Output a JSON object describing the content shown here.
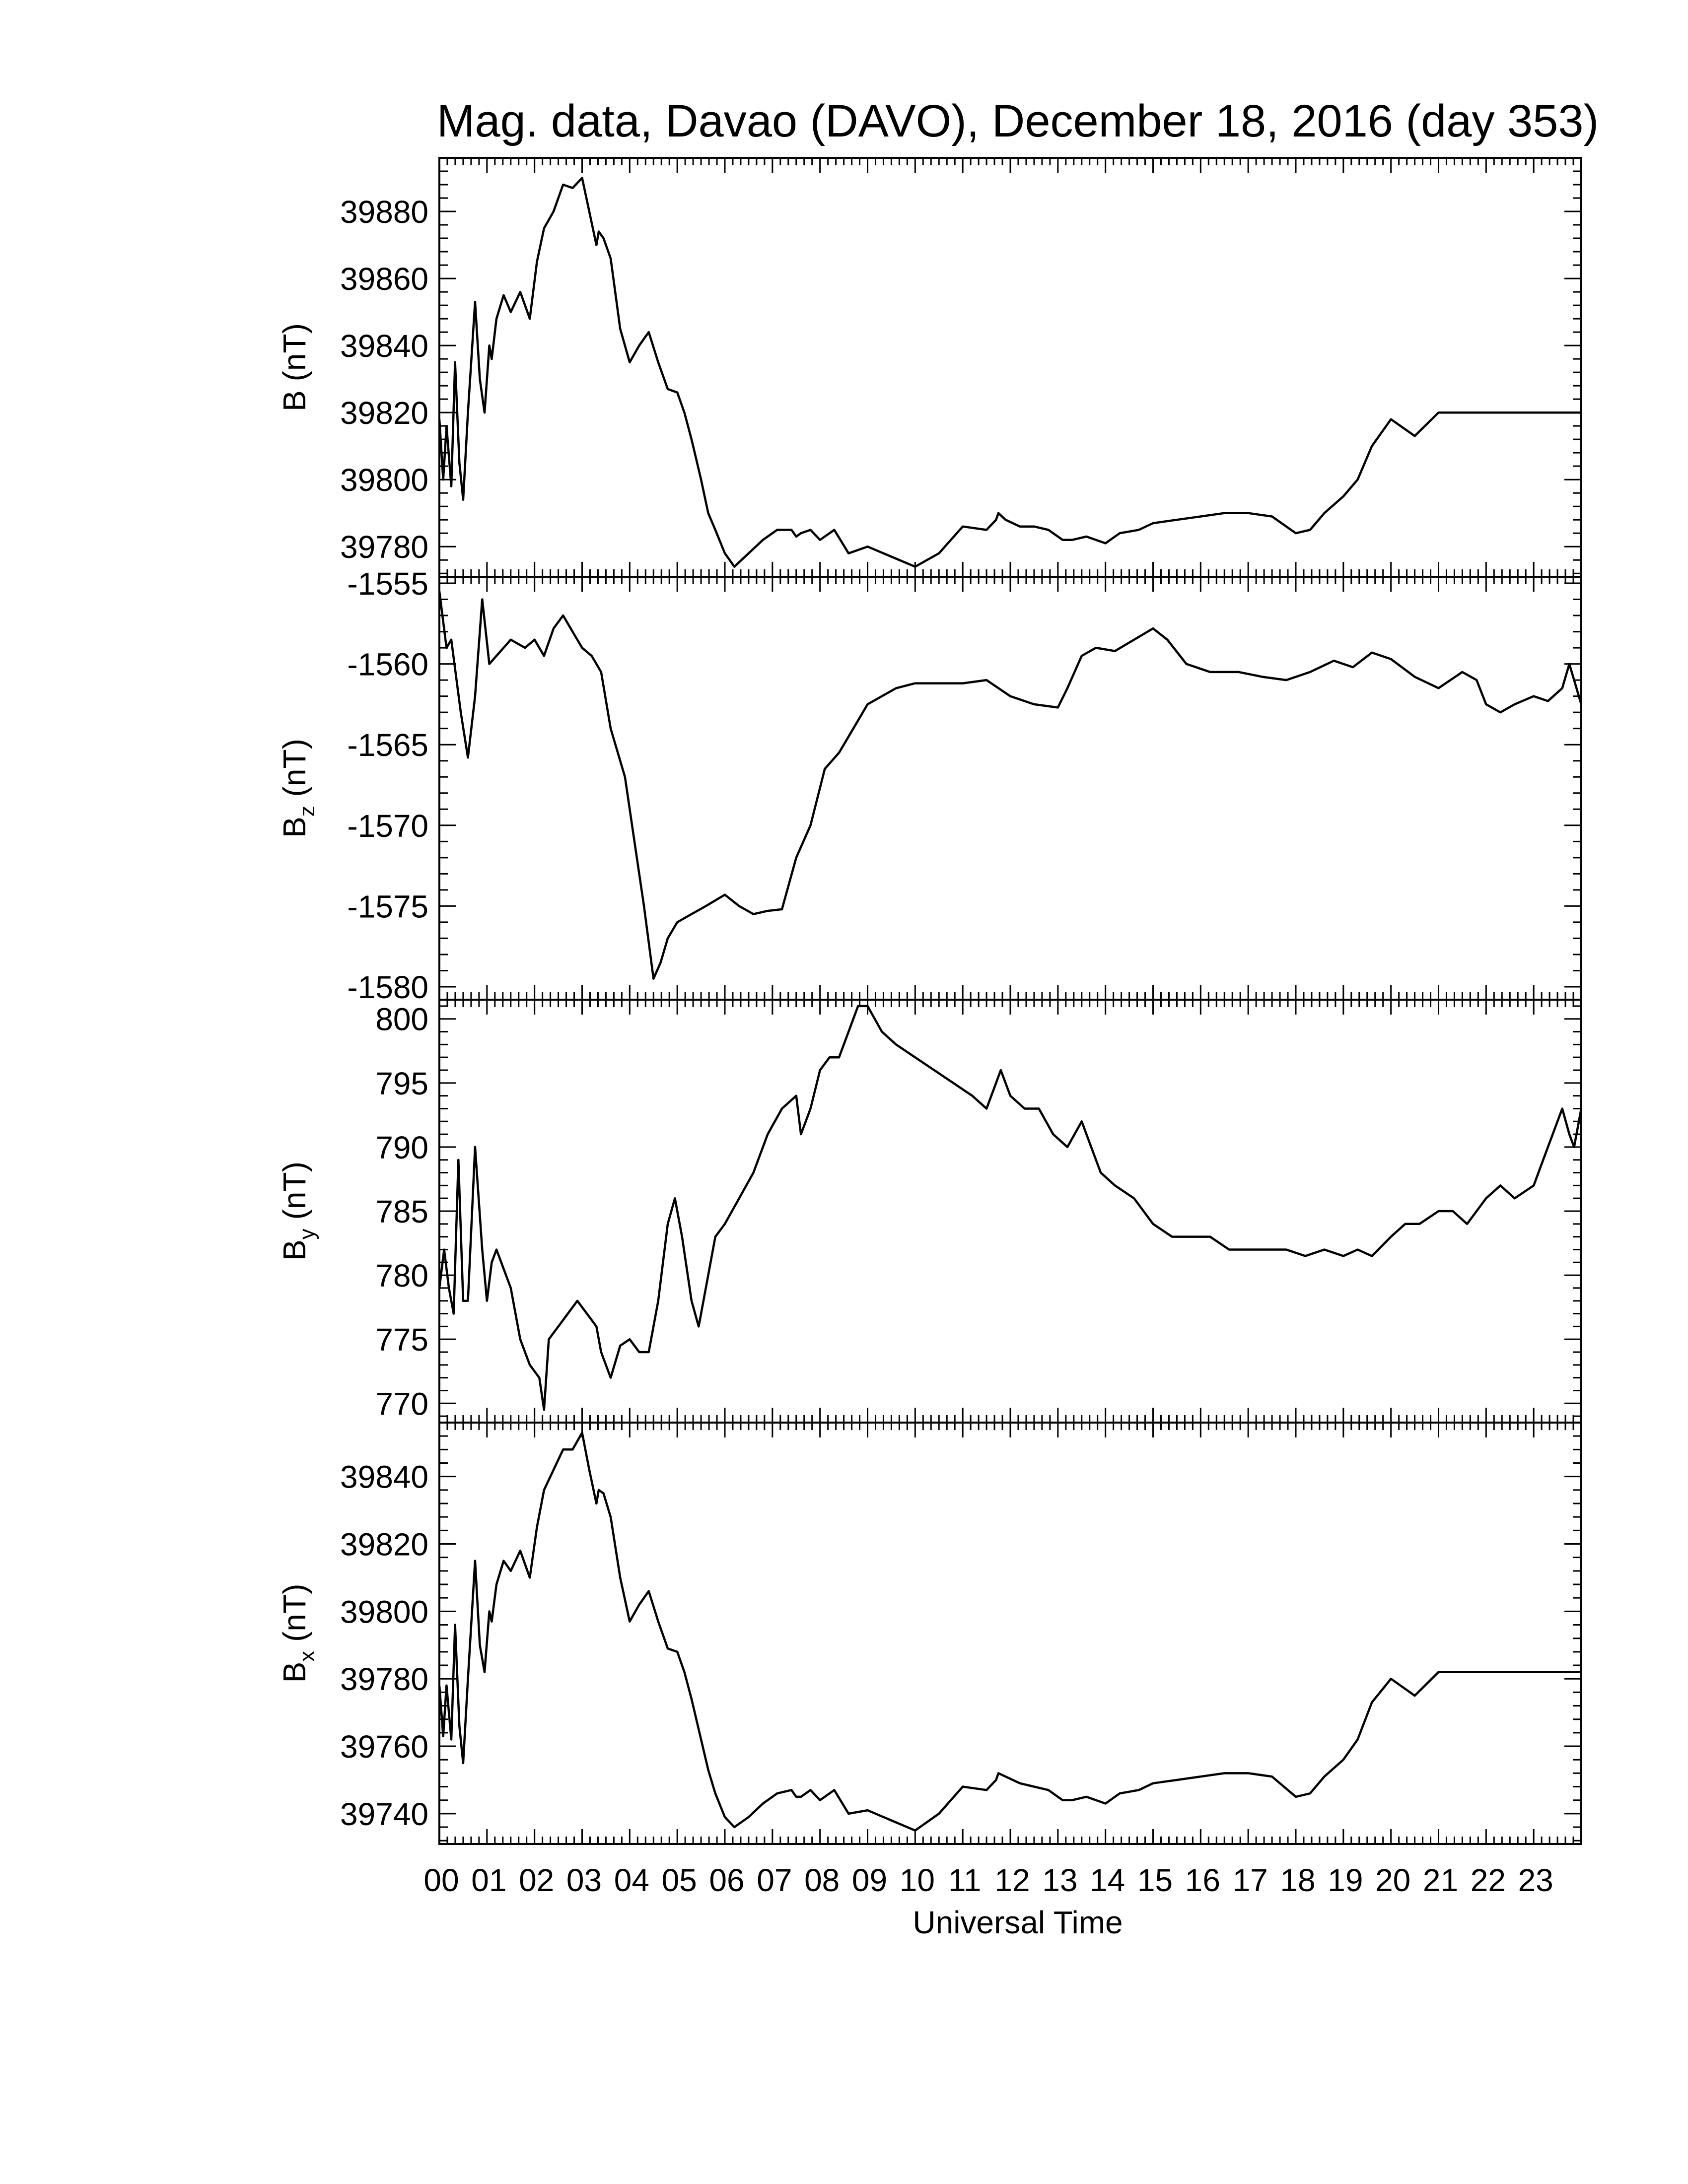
{
  "chart_data": {
    "type": "line",
    "title": "Mag. data, Davao (DAVO), December 18, 2016 (day 353)",
    "xlabel": "Universal Time",
    "x_unit": "hours UT",
    "xlim": [
      0,
      24
    ],
    "x_tick_labels": [
      "00",
      "01",
      "02",
      "03",
      "04",
      "05",
      "06",
      "07",
      "08",
      "09",
      "10",
      "11",
      "12",
      "13",
      "14",
      "15",
      "16",
      "17",
      "18",
      "19",
      "20",
      "21",
      "22",
      "23"
    ],
    "panels": [
      {
        "ylabel_main": "B",
        "ylabel_sub": "",
        "ylabel_unit": "(nT)",
        "ylim": [
          39771,
          39896
        ],
        "yticks": [
          39780,
          39800,
          39820,
          39840,
          39860,
          39880
        ],
        "series": [
          {
            "x": [
              0.0,
              0.08,
              0.15,
              0.25,
              0.33,
              0.42,
              0.5,
              0.6,
              0.75,
              0.85,
              0.95,
              1.05,
              1.1,
              1.2,
              1.35,
              1.5,
              1.7,
              1.9,
              2.05,
              2.2,
              2.4,
              2.6,
              2.8,
              3.0,
              3.15,
              3.3,
              3.35,
              3.45,
              3.6,
              3.8,
              4.0,
              4.2,
              4.4,
              4.6,
              4.8,
              5.0,
              5.15,
              5.3,
              5.5,
              5.65,
              5.8,
              6.0,
              6.2,
              6.5,
              6.8,
              7.1,
              7.4,
              7.5,
              7.6,
              7.8,
              8.0,
              8.3,
              8.6,
              9.0,
              9.5,
              10.0,
              10.5,
              11.0,
              11.5,
              11.7,
              11.75,
              11.9,
              12.2,
              12.5,
              12.8,
              13.0,
              13.1,
              13.3,
              13.6,
              14.0,
              14.3,
              14.7,
              15.0,
              15.5,
              16.0,
              16.5,
              17.0,
              17.5,
              18.0,
              18.3,
              18.6,
              19.0,
              19.3,
              19.6,
              20.0,
              20.5,
              21.0,
              21.5,
              21.8,
              22.0,
              22.3,
              22.5,
              22.7,
              23.0,
              23.2,
              23.5,
              23.65,
              23.8,
              23.9,
              24.0
            ],
            "y": [
              39818,
              39800,
              39816,
              39798,
              39835,
              39805,
              39794,
              39820,
              39853,
              39830,
              39820,
              39840,
              39836,
              39848,
              39855,
              39850,
              39856,
              39848,
              39865,
              39875,
              39880,
              39888,
              39887,
              39890,
              39880,
              39870,
              39874,
              39872,
              39866,
              39845,
              39835,
              39840,
              39844,
              39835,
              39827,
              39826,
              39820,
              39812,
              39800,
              39790,
              39785,
              39778,
              39774,
              39778,
              39782,
              39785,
              39785,
              39783,
              39784,
              39785,
              39782,
              39785,
              39778,
              39780,
              39777,
              39774,
              39778,
              39786,
              39785,
              39788,
              39790,
              39788,
              39786,
              39786,
              39785,
              39783,
              39782,
              39782,
              39783,
              39781,
              39784,
              39785,
              39787,
              39788,
              39789,
              39790,
              39790,
              39789,
              39784,
              39785,
              39790,
              39795,
              39800,
              39810,
              39818,
              39813,
              39820,
              39820,
              39820,
              39820,
              39820,
              39820,
              39820,
              39820,
              39820,
              39820,
              39820,
              39820,
              39820,
              39820
            ]
          }
        ]
      },
      {
        "ylabel_main": "B",
        "ylabel_sub": "z",
        "ylabel_unit": "(nT)",
        "ylim": [
          -1580.8,
          -1554.6
        ],
        "yticks": [
          -1555,
          -1560,
          -1565,
          -1570,
          -1575,
          -1580
        ],
        "series": [
          {
            "x": [
              0.0,
              0.15,
              0.25,
              0.45,
              0.6,
              0.75,
              0.9,
              1.05,
              1.2,
              1.5,
              1.8,
              2.0,
              2.2,
              2.4,
              2.6,
              2.8,
              3.0,
              3.2,
              3.4,
              3.6,
              3.9,
              4.1,
              4.3,
              4.5,
              4.65,
              4.8,
              5.0,
              5.3,
              5.6,
              6.0,
              6.3,
              6.6,
              6.9,
              7.2,
              7.5,
              7.8,
              8.1,
              8.4,
              8.7,
              9.0,
              9.3,
              9.6,
              10.0,
              10.5,
              11.0,
              11.5,
              12.0,
              12.5,
              13.0,
              13.2,
              13.5,
              13.8,
              14.2,
              14.6,
              15.0,
              15.3,
              15.7,
              16.2,
              16.8,
              17.3,
              17.8,
              18.3,
              18.8,
              19.2,
              19.6,
              20.0,
              20.5,
              21.0,
              21.5,
              21.8,
              22.0,
              22.3,
              22.6,
              23.0,
              23.3,
              23.6,
              23.75,
              23.85,
              24.0
            ],
            "y": [
              -1555.5,
              -1559.0,
              -1558.5,
              -1563.0,
              -1565.8,
              -1562.0,
              -1556.0,
              -1560.0,
              -1559.5,
              -1558.5,
              -1559.0,
              -1558.5,
              -1559.5,
              -1557.8,
              -1557.0,
              -1558.0,
              -1559.0,
              -1559.5,
              -1560.5,
              -1564.0,
              -1567.0,
              -1571.0,
              -1575.0,
              -1579.5,
              -1578.5,
              -1577.0,
              -1576.0,
              -1575.5,
              -1575.0,
              -1574.3,
              -1575.0,
              -1575.5,
              -1575.3,
              -1575.2,
              -1572.0,
              -1570.0,
              -1566.5,
              -1565.5,
              -1564.0,
              -1562.5,
              -1562.0,
              -1561.5,
              -1561.2,
              -1561.2,
              -1561.2,
              -1561.0,
              -1562.0,
              -1562.5,
              -1562.7,
              -1561.5,
              -1559.5,
              -1559.0,
              -1559.2,
              -1558.5,
              -1557.8,
              -1558.5,
              -1560.0,
              -1560.5,
              -1560.5,
              -1560.8,
              -1561.0,
              -1560.5,
              -1559.8,
              -1560.2,
              -1559.3,
              -1559.7,
              -1560.8,
              -1561.5,
              -1560.5,
              -1561.0,
              -1562.5,
              -1563.0,
              -1562.5,
              -1562.0,
              -1562.3,
              -1561.5,
              -1560.0,
              -1561.0,
              -1562.5
            ]
          }
        ]
      },
      {
        "ylabel_main": "B",
        "ylabel_sub": "y",
        "ylabel_unit": "(nT)",
        "ylim": [
          768.5,
          801.5
        ],
        "yticks": [
          770,
          775,
          780,
          785,
          790,
          795,
          800
        ],
        "series": [
          {
            "x": [
              0.0,
              0.1,
              0.2,
              0.3,
              0.4,
              0.5,
              0.6,
              0.75,
              0.9,
              1.0,
              1.1,
              1.2,
              1.3,
              1.5,
              1.7,
              1.9,
              2.1,
              2.2,
              2.3,
              2.5,
              2.7,
              2.9,
              3.1,
              3.3,
              3.4,
              3.6,
              3.8,
              4.0,
              4.2,
              4.4,
              4.6,
              4.8,
              4.95,
              5.1,
              5.3,
              5.45,
              5.6,
              5.8,
              6.0,
              6.3,
              6.6,
              6.9,
              7.2,
              7.5,
              7.6,
              7.8,
              8.0,
              8.2,
              8.4,
              8.6,
              8.8,
              9.0,
              9.3,
              9.6,
              10.0,
              10.4,
              10.8,
              11.2,
              11.5,
              11.7,
              11.8,
              12.0,
              12.3,
              12.6,
              12.9,
              13.2,
              13.35,
              13.5,
              13.7,
              13.9,
              14.2,
              14.6,
              15.0,
              15.4,
              15.8,
              16.2,
              16.6,
              17.0,
              17.4,
              17.8,
              18.2,
              18.6,
              19.0,
              19.3,
              19.6,
              20.0,
              20.3,
              20.6,
              21.0,
              21.3,
              21.6,
              22.0,
              22.3,
              22.6,
              23.0,
              23.2,
              23.4,
              23.6,
              23.75,
              23.85,
              24.0
            ],
            "y": [
              779,
              782,
              779,
              777,
              789,
              778,
              778,
              790,
              782,
              778,
              781,
              782,
              781,
              779,
              775,
              773,
              772,
              769.5,
              775,
              776,
              777,
              778,
              777,
              776,
              774,
              772,
              774.5,
              775,
              774,
              774,
              778,
              784,
              786,
              783,
              778,
              776,
              779,
              783,
              784,
              786,
              788,
              791,
              793,
              794,
              791,
              793,
              796,
              797,
              797,
              799,
              801,
              801,
              799,
              798,
              797,
              796,
              795,
              794,
              793,
              795,
              796,
              794,
              793,
              793,
              791,
              790,
              791,
              792,
              790,
              788,
              787,
              786,
              784,
              783,
              783,
              783,
              782,
              782,
              782,
              782,
              781.5,
              782,
              781.5,
              782,
              781.5,
              783,
              784,
              784,
              785,
              785,
              784,
              786,
              787,
              786,
              787,
              789,
              791,
              793,
              791,
              790,
              793
            ]
          }
        ]
      },
      {
        "ylabel_main": "B",
        "ylabel_sub": "x",
        "ylabel_unit": "(nT)",
        "ylim": [
          39731,
          39856
        ],
        "yticks": [
          39740,
          39760,
          39780,
          39800,
          39820,
          39840
        ],
        "series": [
          {
            "x": [
              0.0,
              0.08,
              0.15,
              0.25,
              0.33,
              0.42,
              0.5,
              0.6,
              0.75,
              0.85,
              0.95,
              1.05,
              1.1,
              1.2,
              1.35,
              1.5,
              1.7,
              1.9,
              2.05,
              2.2,
              2.4,
              2.6,
              2.8,
              3.0,
              3.15,
              3.3,
              3.35,
              3.45,
              3.6,
              3.8,
              4.0,
              4.2,
              4.4,
              4.6,
              4.8,
              5.0,
              5.15,
              5.3,
              5.5,
              5.65,
              5.8,
              6.0,
              6.2,
              6.5,
              6.8,
              7.1,
              7.4,
              7.5,
              7.6,
              7.8,
              8.0,
              8.3,
              8.6,
              9.0,
              9.5,
              10.0,
              10.5,
              11.0,
              11.5,
              11.7,
              11.75,
              11.9,
              12.2,
              12.5,
              12.8,
              13.0,
              13.1,
              13.3,
              13.6,
              14.0,
              14.3,
              14.7,
              15.0,
              15.5,
              16.0,
              16.5,
              17.0,
              17.5,
              18.0,
              18.3,
              18.6,
              19.0,
              19.3,
              19.6,
              20.0,
              20.5,
              21.0,
              21.5,
              21.8,
              22.0,
              22.3,
              22.5,
              22.7,
              23.0,
              23.2,
              23.5,
              23.65,
              23.8,
              23.9,
              24.0
            ],
            "y": [
              39778,
              39763,
              39778,
              39762,
              39796,
              39766,
              39755,
              39780,
              39815,
              39790,
              39782,
              39800,
              39797,
              39808,
              39815,
              39812,
              39818,
              39810,
              39825,
              39836,
              39842,
              39848,
              39848,
              39853,
              39842,
              39832,
              39836,
              39835,
              39828,
              39810,
              39797,
              39802,
              39806,
              39797,
              39789,
              39788,
              39782,
              39774,
              39762,
              39753,
              39746,
              39739,
              39736,
              39739,
              39743,
              39746,
              39747,
              39745,
              39745,
              39747,
              39744,
              39747,
              39740,
              39741,
              39738,
              39735,
              39740,
              39748,
              39747,
              39750,
              39752,
              39751,
              39749,
              39748,
              39747,
              39745,
              39744,
              39744,
              39745,
              39743,
              39746,
              39747,
              39749,
              39750,
              39751,
              39752,
              39752,
              39751,
              39745,
              39746,
              39751,
              39756,
              39762,
              39773,
              39780,
              39775,
              39782,
              39782,
              39782,
              39782,
              39782,
              39782,
              39782,
              39782,
              39782,
              39782,
              39782,
              39782,
              39782,
              39782
            ]
          }
        ]
      }
    ]
  }
}
